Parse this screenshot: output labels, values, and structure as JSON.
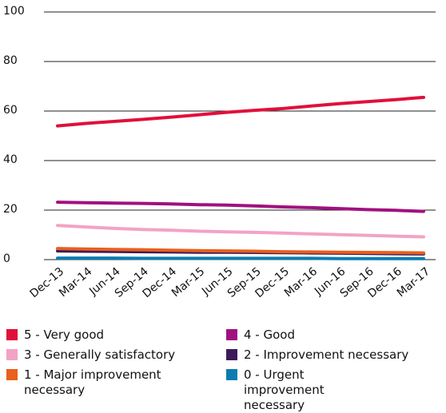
{
  "chart_data": {
    "type": "line",
    "categories": [
      "Dec-13",
      "Mar-14",
      "Jun-14",
      "Sep-14",
      "Dec-14",
      "Mar-15",
      "Jun-15",
      "Sep-15",
      "Dec-15",
      "Mar-16",
      "Jun-16",
      "Sep-16",
      "Dec-16",
      "Mar-17"
    ],
    "series": [
      {
        "name": "5 - Very good",
        "color": "#e0103a",
        "values": [
          54,
          55,
          55.8,
          56.6,
          57.5,
          58.5,
          59.5,
          60.3,
          61,
          62,
          63,
          63.8,
          64.6,
          65.5
        ]
      },
      {
        "name": "4 - Good",
        "color": "#a0117f",
        "values": [
          23.2,
          23,
          22.8,
          22.7,
          22.5,
          22.2,
          22,
          21.7,
          21.3,
          21,
          20.6,
          20.2,
          19.9,
          19.5
        ]
      },
      {
        "name": "3 - Generally satisfactory",
        "color": "#f2a3c4",
        "values": [
          13.8,
          13.2,
          12.6,
          12.2,
          11.9,
          11.5,
          11.2,
          11,
          10.7,
          10.4,
          10.1,
          9.8,
          9.5,
          9.2
        ]
      },
      {
        "name": "2 - Improvement necessary",
        "color": "#3d1a5b",
        "values": [
          3.5,
          3.4,
          3.3,
          3.2,
          3.1,
          3,
          3,
          2.9,
          2.8,
          2.7,
          2.6,
          2.5,
          2.4,
          2.3
        ]
      },
      {
        "name": "1 - Major improvement necessary",
        "color": "#e8601c",
        "values": [
          4.5,
          4.3,
          4.1,
          4,
          3.8,
          3.6,
          3.5,
          3.4,
          3.2,
          3.1,
          3,
          2.9,
          2.8,
          2.7
        ]
      },
      {
        "name": "0 - Urgent improvement necessary",
        "color": "#0b7cb0",
        "values": [
          0.6,
          0.6,
          0.6,
          0.5,
          0.5,
          0.5,
          0.5,
          0.5,
          0.5,
          0.5,
          0.4,
          0.4,
          0.4,
          0.4
        ]
      }
    ],
    "ylim": [
      0,
      100
    ],
    "yticks": [
      0,
      20,
      40,
      60,
      80,
      100
    ],
    "grid": true,
    "legend": "bottom"
  }
}
